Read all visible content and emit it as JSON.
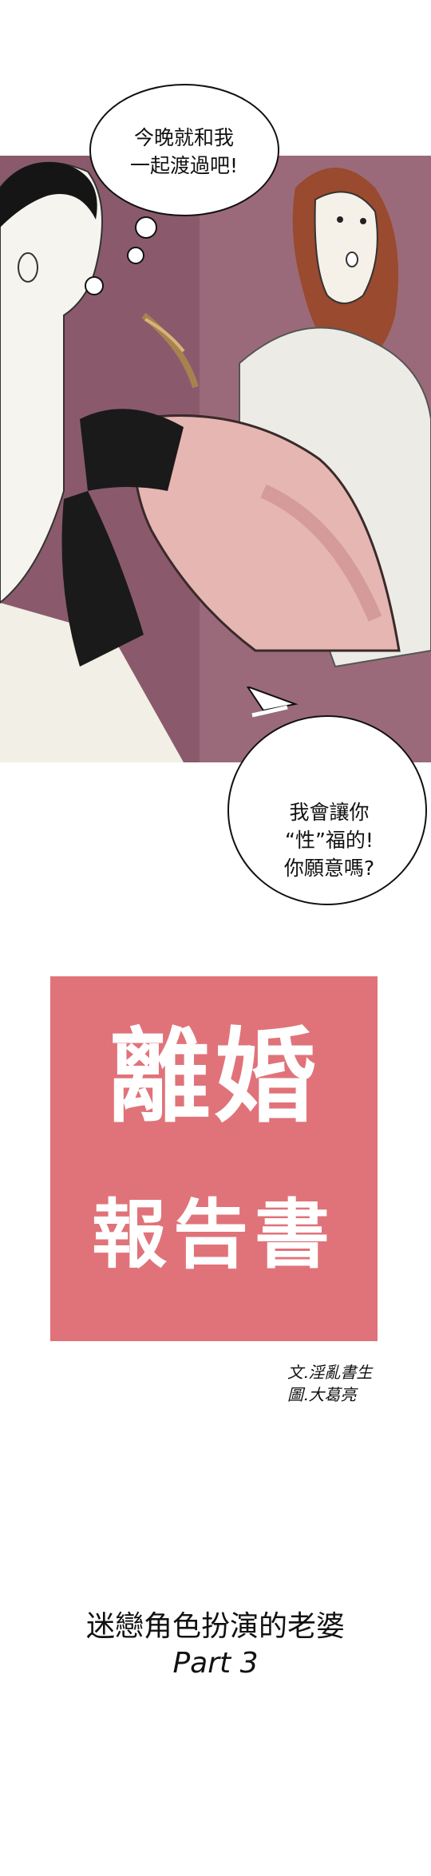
{
  "speech_bubbles": [
    {
      "lines": [
        "今晚就和我",
        "一起渡過吧!"
      ]
    },
    {
      "lines": [
        "我會讓你",
        "“性”福的!",
        "你願意嗎?"
      ]
    }
  ],
  "title": {
    "main": "離婚",
    "sub": "報告書",
    "background_color": "#e07379"
  },
  "credits": {
    "writer": "文.淫亂書生",
    "artist": "圖.大葛亮"
  },
  "episode": {
    "title": "迷戀角色扮演的老婆",
    "part": "Part 3"
  }
}
